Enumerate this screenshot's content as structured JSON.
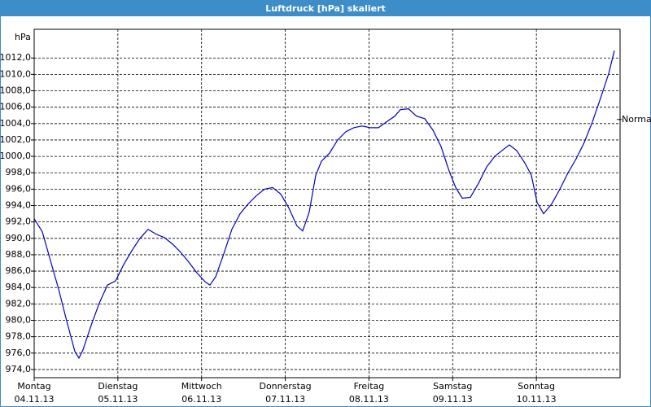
{
  "chart_data": {
    "type": "line",
    "title": "Luftdruck [hPa] skaliert",
    "y_label": "hPa",
    "xlim": [
      0,
      7
    ],
    "xticks": [
      {
        "value": 0,
        "label": "Montag",
        "date": "04.11.13"
      },
      {
        "value": 1,
        "label": "Dienstag",
        "date": "05.11.13"
      },
      {
        "value": 2,
        "label": "Mittwoch",
        "date": "06.11.13"
      },
      {
        "value": 3,
        "label": "Donnerstag",
        "date": "07.11.13"
      },
      {
        "value": 4,
        "label": "Freitag",
        "date": "08.11.13"
      },
      {
        "value": 5,
        "label": "Samstag",
        "date": "09.11.13"
      },
      {
        "value": 6,
        "label": "Sonntag",
        "date": "10.11.13"
      }
    ],
    "ylim": [
      973,
      1015.5
    ],
    "yticks": [
      {
        "value": 974,
        "label": "974,0"
      },
      {
        "value": 976,
        "label": "976,0"
      },
      {
        "value": 978,
        "label": "978,0"
      },
      {
        "value": 980,
        "label": "980,0"
      },
      {
        "value": 982,
        "label": "982,0"
      },
      {
        "value": 984,
        "label": "984,0"
      },
      {
        "value": 986,
        "label": "986,0"
      },
      {
        "value": 988,
        "label": "988,0"
      },
      {
        "value": 990,
        "label": "990,0"
      },
      {
        "value": 992,
        "label": "992,0"
      },
      {
        "value": 994,
        "label": "994,0"
      },
      {
        "value": 996,
        "label": "996,0"
      },
      {
        "value": 998,
        "label": "998,0"
      },
      {
        "value": 1000,
        "label": "1000,0"
      },
      {
        "value": 1002,
        "label": "1002,0"
      },
      {
        "value": 1004,
        "label": "1004,0"
      },
      {
        "value": 1006,
        "label": "1006,0"
      },
      {
        "value": 1008,
        "label": "1008,0"
      },
      {
        "value": 1010,
        "label": "1010,0"
      },
      {
        "value": 1012,
        "label": "1012,0"
      }
    ],
    "grid": true,
    "normal": {
      "label": "Normal",
      "value": 1004.5
    },
    "x": [
      0,
      0.097,
      0.194,
      0.292,
      0.389,
      0.486,
      0.535,
      0.583,
      0.681,
      0.778,
      0.875,
      0.972,
      1.069,
      1.167,
      1.264,
      1.361,
      1.458,
      1.555,
      1.653,
      1.75,
      1.847,
      1.944,
      2.042,
      2.1,
      2.168,
      2.265,
      2.362,
      2.46,
      2.557,
      2.654,
      2.751,
      2.849,
      2.946,
      3.043,
      3.14,
      3.208,
      3.286,
      3.364,
      3.432,
      3.529,
      3.626,
      3.723,
      3.821,
      3.918,
      4.015,
      4.112,
      4.209,
      4.307,
      4.375,
      4.472,
      4.569,
      4.666,
      4.764,
      4.861,
      4.958,
      5.036,
      5.114,
      5.211,
      5.308,
      5.405,
      5.503,
      5.6,
      5.678,
      5.765,
      5.862,
      5.94,
      6.008,
      6.086,
      6.183,
      6.281,
      6.378,
      6.475,
      6.572,
      6.669,
      6.767,
      6.864,
      6.932
    ],
    "series": [
      {
        "color": "#0000c0",
        "values": [
          992.4,
          990.8,
          987.3,
          983.8,
          979.9,
          976.2,
          975.4,
          976.4,
          979.4,
          982.1,
          984.3,
          984.8,
          986.8,
          988.5,
          990.0,
          991.1,
          990.5,
          990.1,
          989.3,
          988.3,
          987.1,
          985.8,
          984.7,
          984.3,
          985.3,
          988.1,
          991.1,
          993.0,
          994.2,
          995.2,
          996.0,
          996.2,
          995.4,
          993.7,
          991.5,
          990.9,
          993.2,
          997.7,
          999.4,
          1000.4,
          1002.0,
          1003.0,
          1003.5,
          1003.7,
          1003.5,
          1003.5,
          1004.2,
          1004.9,
          1005.7,
          1005.8,
          1004.9,
          1004.6,
          1003.2,
          1001.2,
          998.2,
          996.2,
          994.9,
          995.0,
          996.7,
          998.7,
          1000.0,
          1000.8,
          1001.4,
          1000.7,
          999.2,
          997.7,
          994.4,
          993.0,
          994.2,
          996.0,
          998.0,
          999.7,
          1001.7,
          1004.2,
          1007.1,
          1010.1,
          1012.9
        ]
      }
    ]
  }
}
